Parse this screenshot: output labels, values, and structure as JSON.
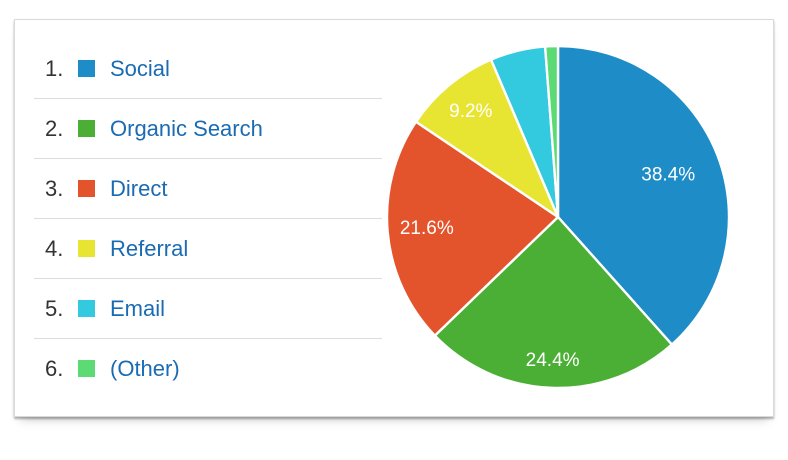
{
  "page": {
    "background": "#ffffff"
  },
  "legend": {
    "items": [
      {
        "rank": "1.",
        "label": "Social",
        "color": "#1E8CC7"
      },
      {
        "rank": "2.",
        "label": "Organic Search",
        "color": "#4CAF35"
      },
      {
        "rank": "3.",
        "label": "Direct",
        "color": "#E4542C"
      },
      {
        "rank": "4.",
        "label": "Referral",
        "color": "#E8E532"
      },
      {
        "rank": "5.",
        "label": "Email",
        "color": "#33C9DE"
      },
      {
        "rank": "6.",
        "label": "(Other)",
        "color": "#5CDA74"
      }
    ],
    "label_color": "#1A6BB3",
    "rank_color": "#333333",
    "divider_color": "#DCDCDC"
  },
  "chart_data": {
    "type": "pie",
    "title": "",
    "direction": "clockwise",
    "start_angle_deg": -90,
    "slice_border_color": "#ffffff",
    "slice_label_color": "#ffffff",
    "series": [
      {
        "label": "Social",
        "value": 38.4,
        "display": "38.4%",
        "color": "#1E8CC7",
        "label_visible": true
      },
      {
        "label": "Organic Search",
        "value": 24.4,
        "display": "24.4%",
        "color": "#4CAF35",
        "label_visible": true
      },
      {
        "label": "Direct",
        "value": 21.6,
        "display": "21.6%",
        "color": "#E4542C",
        "label_visible": true
      },
      {
        "label": "Referral",
        "value": 9.2,
        "display": "9.2%",
        "color": "#E8E532",
        "label_visible": true
      },
      {
        "label": "Email",
        "value": 5.2,
        "display": "",
        "color": "#33C9DE",
        "label_visible": false
      },
      {
        "label": "(Other)",
        "value": 1.2,
        "display": "",
        "color": "#5CDA74",
        "label_visible": false
      }
    ]
  }
}
